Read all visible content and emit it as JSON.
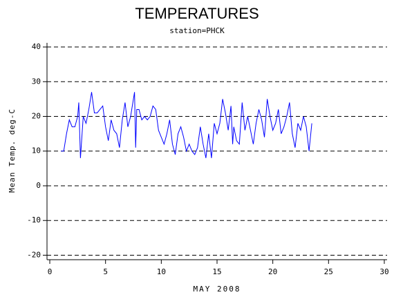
{
  "chart_data": {
    "type": "line",
    "title": "TEMPERATURES",
    "subtitle": "station=PHCK",
    "y_label": "Mean Temp. deg-C",
    "x_label": "MAY 2008",
    "xlim": [
      -0.25,
      30.25
    ],
    "xticks": [
      0,
      5,
      10,
      15,
      20,
      25,
      30
    ],
    "ylim": [
      -21.3,
      41.2
    ],
    "yticks": [
      -20,
      -10,
      0,
      10,
      20,
      30,
      40
    ],
    "grid": true,
    "series": [
      {
        "color": "#0000ff",
        "x": [
          1,
          1.25,
          1.5,
          1.75,
          2,
          2.25,
          2.5,
          2.6,
          2.75,
          3,
          3.25,
          3.5,
          3.75,
          4,
          4.25,
          4.5,
          4.75,
          5,
          5.25,
          5.5,
          5.75,
          6,
          6.25,
          6.5,
          6.75,
          7,
          7.25,
          7.5,
          7.6,
          7.7,
          7.8,
          8,
          8.25,
          8.5,
          8.75,
          9,
          9.25,
          9.5,
          9.75,
          10,
          10.25,
          10.5,
          10.75,
          11,
          11.25,
          11.5,
          11.75,
          12,
          12.25,
          12.5,
          12.75,
          13,
          13.25,
          13.5,
          13.75,
          14,
          14.25,
          14.5,
          14.75,
          15,
          15.25,
          15.5,
          15.75,
          16,
          16.25,
          16.4,
          16.5,
          16.75,
          17,
          17.25,
          17.5,
          17.75,
          18,
          18.25,
          18.5,
          18.75,
          19,
          19.25,
          19.5,
          19.75,
          20,
          20.25,
          20.5,
          20.75,
          21,
          21.25,
          21.5,
          21.75,
          22,
          22.25,
          22.5,
          22.75,
          23,
          23.25,
          23.5
        ],
        "values": [
          10,
          10,
          15,
          19,
          17,
          17,
          20,
          24,
          8,
          20,
          18,
          22,
          27,
          21,
          21,
          22,
          23,
          17,
          13,
          19,
          16,
          15,
          11,
          19,
          24,
          17,
          20,
          25,
          27,
          11,
          22,
          22,
          19,
          20,
          19,
          20,
          23,
          22,
          16,
          14,
          12,
          15,
          19,
          12,
          9,
          15,
          17,
          14,
          10,
          12,
          10,
          9,
          11,
          17,
          12,
          8,
          15,
          8,
          18,
          15,
          18,
          25,
          21,
          16,
          23,
          12,
          17,
          13,
          12,
          24,
          16,
          20,
          16,
          12,
          18,
          22,
          19,
          14,
          25,
          20,
          16,
          18,
          22,
          15,
          17,
          20,
          24,
          15,
          11,
          18,
          16,
          20,
          17,
          10,
          18
        ]
      }
    ]
  }
}
